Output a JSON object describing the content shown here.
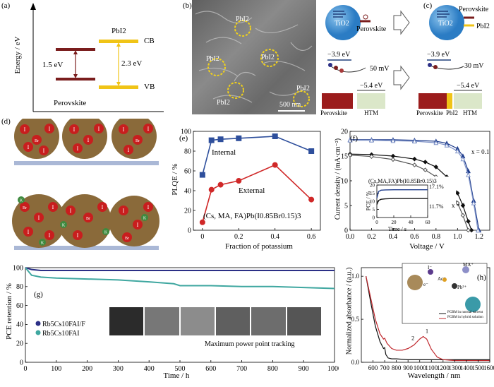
{
  "panels": {
    "a": {
      "label": "(a)",
      "ylabel": "Energy / eV",
      "material_left": "Perovskite",
      "material_right": "PbI2",
      "gap_left": "1.5 eV",
      "gap_right": "2.3 eV",
      "cb": "CB",
      "vb": "VB"
    },
    "b": {
      "label": "(b)",
      "annotations": [
        "PbI2",
        "PbI2",
        "PbI2",
        "PbI2",
        "PbI2"
      ],
      "scalebar": "500 nm"
    },
    "c": {
      "label": "(c)",
      "tio2": "TiO2",
      "perovskite": "Perovskite",
      "pbi2": "PbI2",
      "e_left": "−3.9 eV",
      "e_right": "−3.9 eV",
      "mv_left": "50 mV",
      "mv_right": "30 mV",
      "htm_left": "−5.4 eV",
      "htm_right": "−5.4 eV",
      "bottom_left": [
        "Perovskite",
        "HTM"
      ],
      "bottom_right": [
        "Perovskite",
        "PbI2",
        "HTM"
      ]
    },
    "d": {
      "label": "(d)",
      "ions": [
        "I",
        "Br",
        "K"
      ]
    },
    "e": {
      "label": "(e)",
      "ylabel": "PLQE / %",
      "xlabel": "Fraction of potassium",
      "formula": "(Cs, MA, FA)Pb(I0.85Br0.15)3",
      "series_internal": "Internal",
      "series_external": "External"
    },
    "f": {
      "label": "(f)",
      "ylabel": "Current density / (mA·cm⁻²)",
      "xlabel": "Voltage / V",
      "x_top": "x = 0.1",
      "x_bottom": "x = 0",
      "inset_title": "(Cs,MA,FA)Pb(I0.85Br0.15)3",
      "inset_ylabel": "PCE / %",
      "inset_xlabel": "Time / s",
      "inset_val_top": "17.1%",
      "inset_val_bottom": "11.7%"
    },
    "g": {
      "label": "(g)",
      "ylabel": "PCE retention / %",
      "xlabel": "Time / h",
      "legend": [
        "Rb5Cs10FAI/F",
        "Rb5Cs10FAI"
      ],
      "note": "Maximum power point tracking"
    },
    "h": {
      "label": "(h)",
      "ylabel": "Normalized absorbance / (a.u.)",
      "xlabel": "Wavelength / nm",
      "ions": [
        "I⁻",
        "MA⁺",
        "Ac⁻",
        "Pb²⁺",
        "e⁻"
      ],
      "legend": [
        "PCBM in normal solvent",
        "PCBM in hybrid solution"
      ],
      "curve_labels": [
        "1",
        "2"
      ]
    }
  },
  "chart_data": [
    {
      "panel": "e",
      "type": "line",
      "xlabel": "Fraction of potassium",
      "ylabel": "PLQE / %",
      "xlim": [
        -0.05,
        0.65
      ],
      "ylim": [
        0,
        100
      ],
      "xticks": [
        0,
        0.2,
        0.4,
        0.6
      ],
      "yticks": [
        0,
        20,
        40,
        60,
        80,
        100
      ],
      "series": [
        {
          "name": "Internal",
          "color": "#2e4f9c",
          "marker": "square",
          "x": [
            0,
            0.05,
            0.1,
            0.2,
            0.4,
            0.6
          ],
          "values": [
            56,
            91,
            92,
            93,
            95,
            80
          ]
        },
        {
          "name": "External",
          "color": "#d02828",
          "marker": "circle",
          "x": [
            0,
            0.05,
            0.1,
            0.2,
            0.4,
            0.6
          ],
          "values": [
            8,
            41,
            46,
            50,
            66,
            31
          ]
        }
      ]
    },
    {
      "panel": "f",
      "type": "line",
      "xlabel": "Voltage / V",
      "ylabel": "Current density / (mA·cm⁻²)",
      "xlim": [
        0,
        1.3
      ],
      "ylim": [
        0,
        20
      ],
      "xticks": [
        0,
        0.2,
        0.4,
        0.6,
        0.8,
        1.0,
        1.2
      ],
      "yticks": [
        0,
        5,
        10,
        15,
        20
      ],
      "series": [
        {
          "name": "x = 0.1 forward",
          "color": "#1e3c8c",
          "marker": "triangle",
          "x": [
            0,
            0.2,
            0.4,
            0.6,
            0.8,
            0.9,
            1.0,
            1.05,
            1.1,
            1.15,
            1.2
          ],
          "values": [
            18.3,
            18.3,
            18.3,
            18.2,
            18.0,
            17.6,
            16.5,
            15.0,
            12.0,
            6.0,
            0
          ]
        },
        {
          "name": "x = 0.1 reverse",
          "color": "#7f93c8",
          "marker": "triangle-open",
          "x": [
            0,
            0.2,
            0.4,
            0.6,
            0.8,
            0.9,
            1.0,
            1.05,
            1.1,
            1.15,
            1.19
          ],
          "values": [
            18.2,
            18.2,
            18.1,
            18.0,
            17.7,
            17.2,
            16.0,
            14.4,
            11.2,
            5.5,
            0
          ]
        },
        {
          "name": "x = 0 forward",
          "color": "#111111",
          "marker": "diamond",
          "x": [
            0,
            0.2,
            0.4,
            0.6,
            0.7,
            0.8,
            0.9,
            1.0,
            1.05,
            1.1,
            1.13
          ],
          "values": [
            15.4,
            15.3,
            15.0,
            14.4,
            13.8,
            12.8,
            10.8,
            7.5,
            5.0,
            1.8,
            0
          ]
        },
        {
          "name": "x = 0 reverse",
          "color": "#555555",
          "marker": "diamond-open",
          "x": [
            0,
            0.2,
            0.4,
            0.6,
            0.7,
            0.8,
            0.9,
            1.0,
            1.05,
            1.1
          ],
          "values": [
            15.2,
            14.9,
            14.3,
            13.2,
            12.2,
            10.8,
            8.8,
            5.5,
            3.0,
            0
          ]
        }
      ],
      "inset": {
        "xlim": [
          0,
          60
        ],
        "ylim": [
          0,
          20
        ],
        "xticks": [
          0,
          20,
          40,
          60
        ],
        "yticks": [
          0,
          5,
          10,
          15,
          20
        ],
        "series": [
          {
            "name": "17.1%",
            "color": "#1e3c8c",
            "x": [
              0,
              2,
              5,
              10,
              20,
              30,
              40,
              50,
              60
            ],
            "values": [
              12,
              16,
              16.8,
              17,
              17.1,
              17.1,
              17.1,
              17.1,
              17.1
            ]
          },
          {
            "name": "11.7%",
            "color": "#111111",
            "x": [
              0,
              2,
              5,
              10,
              20,
              30,
              40,
              50,
              60
            ],
            "values": [
              8,
              10.5,
              11.2,
              11.5,
              11.7,
              11.7,
              11.7,
              11.7,
              11.7
            ]
          }
        ]
      }
    },
    {
      "panel": "g",
      "type": "line",
      "xlabel": "Time / h",
      "ylabel": "PCE retention / %",
      "xlim": [
        0,
        1000
      ],
      "ylim": [
        0,
        100
      ],
      "xticks": [
        0,
        100,
        200,
        300,
        400,
        500,
        600,
        700,
        800,
        900,
        1000
      ],
      "yticks": [
        0,
        20,
        40,
        60,
        80,
        100
      ],
      "series": [
        {
          "name": "Rb5Cs10FAI/F",
          "color": "#2b2f86",
          "x": [
            0,
            20,
            50,
            100,
            200,
            300,
            400,
            500,
            600,
            700,
            800,
            900,
            1000
          ],
          "values": [
            100,
            98,
            97,
            97,
            97,
            97,
            97,
            97,
            97,
            97,
            97,
            97,
            97
          ]
        },
        {
          "name": "Rb5Cs10FAI",
          "color": "#3fa7a0",
          "x": [
            0,
            20,
            50,
            100,
            200,
            300,
            400,
            480,
            500,
            600,
            700,
            800,
            900,
            1000
          ],
          "values": [
            100,
            92,
            90,
            89,
            88,
            87,
            85,
            83,
            81,
            81,
            80,
            80,
            79,
            78
          ]
        }
      ]
    },
    {
      "panel": "h",
      "type": "line",
      "xlabel": "Wavelength / nm",
      "ylabel": "Normalized absorbance / (a.u.)",
      "xlim": [
        500,
        1600
      ],
      "ylim": [
        0,
        1.1
      ],
      "xticks": [
        600,
        700,
        800,
        900,
        1000,
        1100,
        1200,
        1300,
        1400,
        1500,
        1600
      ],
      "yticks": [
        0,
        0.5,
        1.0
      ],
      "series": [
        {
          "name": "1",
          "color": "#111111",
          "x": [
            540,
            580,
            620,
            660,
            690,
            700,
            710,
            730,
            760,
            800,
            900,
            1000,
            1200,
            1400,
            1600
          ],
          "values": [
            1.0,
            0.7,
            0.42,
            0.24,
            0.16,
            0.17,
            0.09,
            0.05,
            0.04,
            0.04,
            0.03,
            0.03,
            0.03,
            0.03,
            0.03
          ]
        },
        {
          "name": "2",
          "color": "#c0282d",
          "x": [
            540,
            580,
            620,
            660,
            690,
            700,
            720,
            760,
            800,
            850,
            900,
            950,
            1000,
            1030,
            1060,
            1100,
            1150,
            1200,
            1300,
            1600
          ],
          "values": [
            1.0,
            0.75,
            0.5,
            0.33,
            0.27,
            0.28,
            0.22,
            0.16,
            0.14,
            0.14,
            0.16,
            0.2,
            0.27,
            0.3,
            0.27,
            0.15,
            0.06,
            0.03,
            0.02,
            0.02
          ]
        }
      ]
    }
  ]
}
